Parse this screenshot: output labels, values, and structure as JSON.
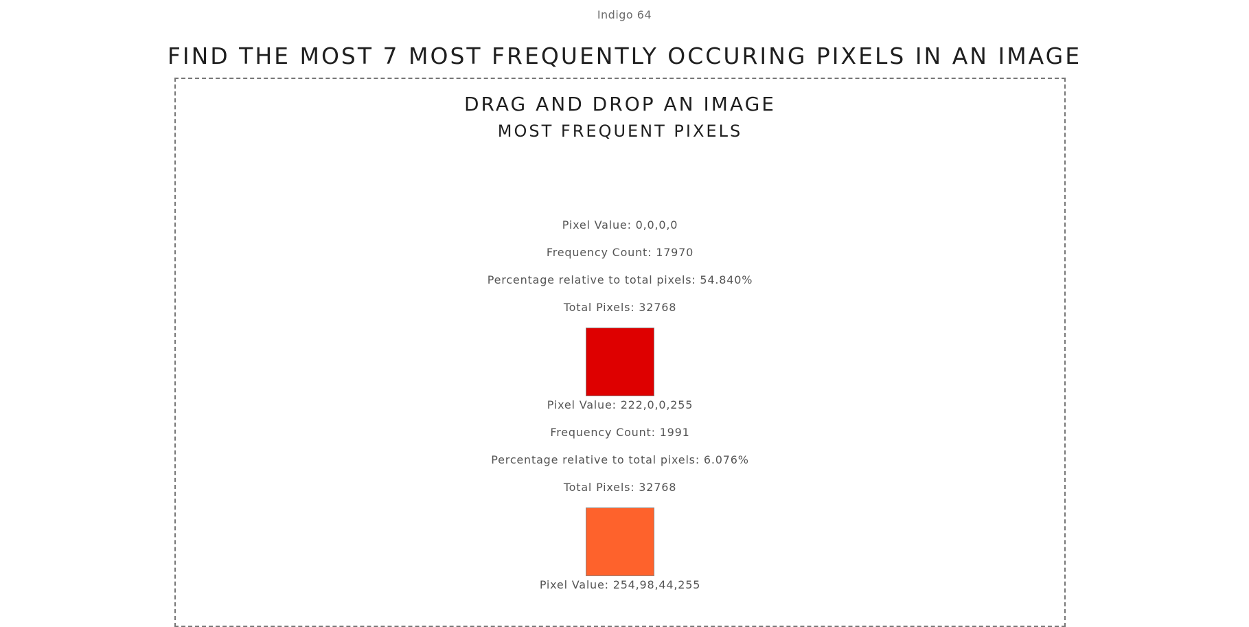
{
  "header": {
    "label": "Indigo 64",
    "title": "FIND THE MOST 7 MOST FREQUENTLY OCCURING PIXELS IN AN IMAGE"
  },
  "drop_zone": {
    "heading": "DRAG AND DROP AN IMAGE",
    "results_heading": "MOST FREQUENT PIXELS"
  },
  "pixels": [
    {
      "pixel_value": "Pixel Value: 0,0,0,0",
      "frequency": "Frequency Count: 17970",
      "percentage": "Percentage relative to total pixels: 54.840%",
      "total": "Total Pixels: 32768",
      "color": "#000000"
    },
    {
      "pixel_value": "Pixel Value: 222,0,0,255",
      "frequency": "Frequency Count: 1991",
      "percentage": "Percentage relative to total pixels: 6.076%",
      "total": "Total Pixels: 32768",
      "color": "#de0000"
    },
    {
      "pixel_value": "Pixel Value: 254,98,44,255",
      "color": "#fe622c"
    }
  ]
}
